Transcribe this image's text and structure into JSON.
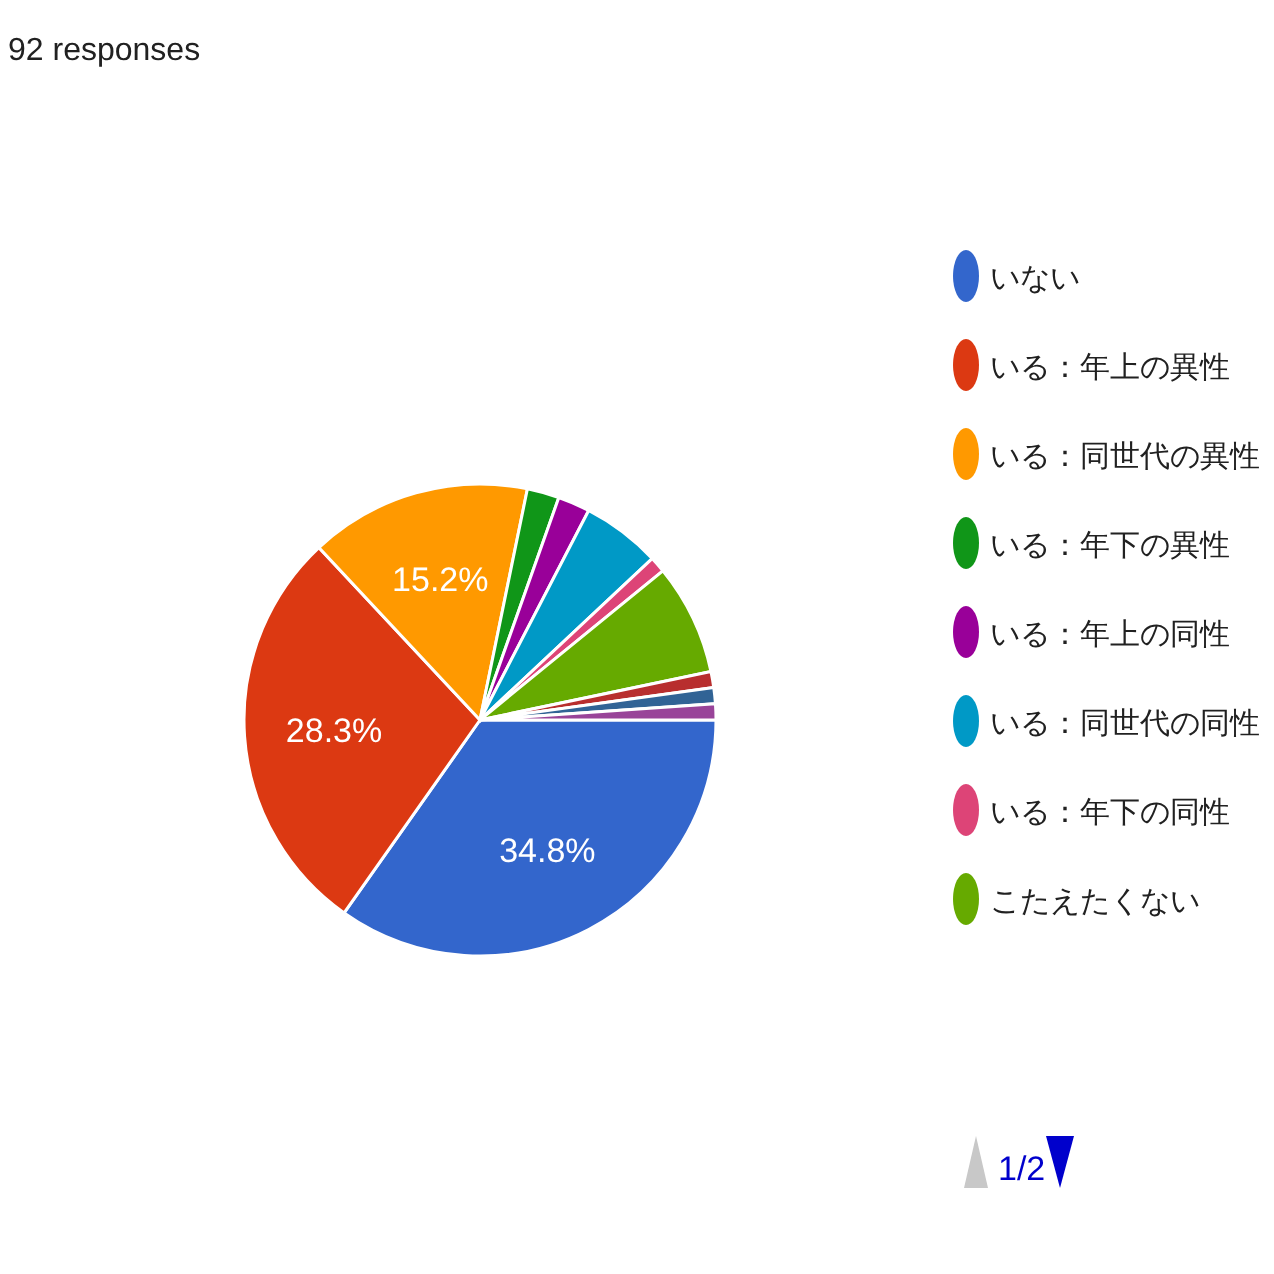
{
  "chart_data": {
    "type": "pie",
    "title": "92 responses",
    "categories": [
      "いない",
      "いる：年上の異性",
      "いる：同世代の異性",
      "いる：年下の異性",
      "いる：年上の同性",
      "いる：同世代の同性",
      "いる：年下の同性",
      "こたえたくない",
      null,
      null,
      null
    ],
    "values": [
      34.8,
      28.3,
      15.2,
      2.2,
      2.2,
      5.4,
      1.1,
      7.6,
      1.1,
      1.1,
      1.1
    ],
    "value_labels": [
      "34.8%",
      "28.3%",
      "15.2%",
      null,
      null,
      null,
      null,
      null,
      null,
      null,
      null
    ],
    "colors": [
      "#3366cc",
      "#dc3912",
      "#ff9900",
      "#109618",
      "#990099",
      "#0099c6",
      "#dd4477",
      "#66aa00",
      "#b82e2e",
      "#316395",
      "#994499"
    ],
    "legend": "right",
    "annotations": [
      "1/2"
    ]
  }
}
